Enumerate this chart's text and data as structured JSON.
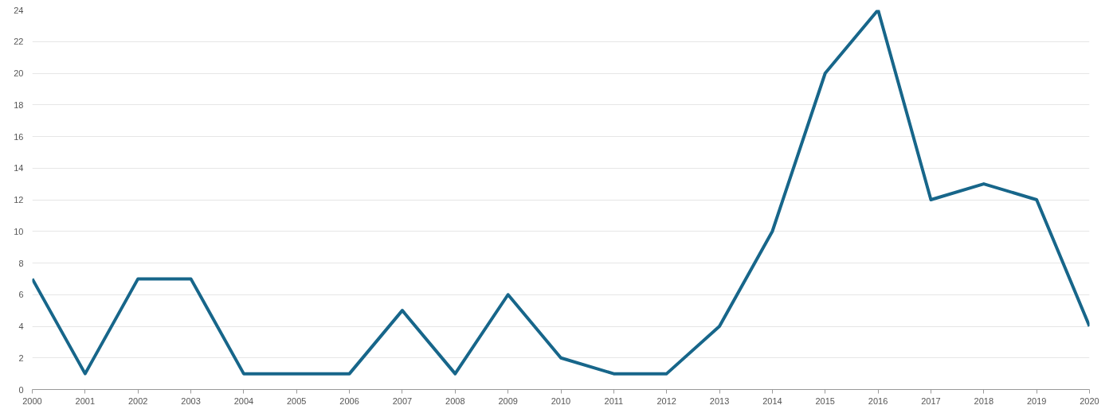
{
  "chart_data": {
    "type": "line",
    "x": [
      2000,
      2001,
      2002,
      2003,
      2004,
      2005,
      2006,
      2007,
      2008,
      2009,
      2010,
      2011,
      2012,
      2013,
      2014,
      2015,
      2016,
      2017,
      2018,
      2019,
      2020
    ],
    "series": [
      {
        "color": "#17668a",
        "values": [
          7,
          1,
          7,
          7,
          1,
          1,
          1,
          5,
          1,
          6,
          2,
          1,
          1,
          4,
          10,
          20,
          24,
          12,
          13,
          12,
          4
        ]
      }
    ],
    "xlim": [
      2000,
      2020
    ],
    "xticks": [
      2000,
      2001,
      2002,
      2003,
      2004,
      2005,
      2006,
      2007,
      2008,
      2009,
      2010,
      2011,
      2012,
      2013,
      2014,
      2015,
      2016,
      2017,
      2018,
      2019,
      2020
    ],
    "ylim": [
      0,
      24
    ],
    "yticks": [
      0,
      2,
      4,
      6,
      8,
      10,
      12,
      14,
      16,
      18,
      20,
      22,
      24
    ],
    "grid": "y",
    "line_style": "solid",
    "marker": "none"
  }
}
